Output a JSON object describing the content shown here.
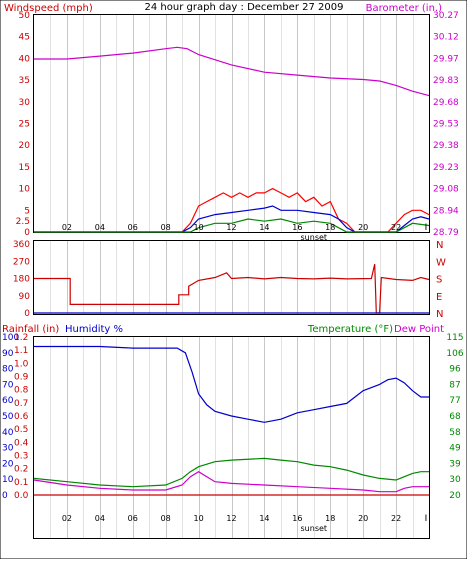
{
  "chart_data": [
    {
      "type": "line",
      "title": "24 hour graph day : December 27 2009",
      "left_axis": {
        "label": "Windspeed (mph)",
        "ticks": [
          0,
          2.5,
          5,
          10,
          15,
          20,
          25,
          30,
          35,
          40,
          45,
          50
        ],
        "tick_labels": [
          "0",
          "2.5",
          "5",
          "10",
          "15",
          "20",
          "25",
          "30",
          "35",
          "40",
          "45",
          "50"
        ],
        "ylim": [
          0,
          50
        ],
        "color": "#cc0000"
      },
      "right_axis": {
        "label": "Barometer (in.)",
        "tick_labels": [
          "28.79",
          "28.94",
          "29.08",
          "29.23",
          "29.38",
          "29.53",
          "29.68",
          "29.83",
          "29.97",
          "30.12",
          "30.27"
        ],
        "ylim": [
          28.79,
          30.27
        ],
        "color": "#cc00cc"
      },
      "x_tick_labels": [
        "02",
        "04",
        "06",
        "08",
        "10",
        "12",
        "14",
        "16",
        "18",
        "20",
        "22"
      ],
      "x_marker_label": "sunset",
      "x_end_marker": "I",
      "series": [
        {
          "role": "barometer",
          "color": "#cc00cc",
          "x": [
            0,
            2,
            4,
            6,
            8,
            8.7,
            9.3,
            10,
            12,
            14,
            16,
            18,
            20,
            21,
            22,
            23,
            24
          ],
          "y": [
            29.97,
            29.97,
            29.99,
            30.01,
            30.04,
            30.05,
            30.04,
            30.0,
            29.93,
            29.88,
            29.86,
            29.84,
            29.83,
            29.82,
            29.79,
            29.75,
            29.72
          ]
        },
        {
          "role": "wind gust",
          "color": "#ff0000",
          "x": [
            0,
            8.5,
            9,
            9.5,
            10,
            10.5,
            11,
            11.5,
            12,
            12.5,
            13,
            13.5,
            14,
            14.5,
            15,
            15.5,
            16,
            16.5,
            17,
            17.5,
            18,
            18.5,
            19,
            19.5,
            21.5,
            22,
            22.5,
            23,
            23.5,
            24
          ],
          "y": [
            0,
            0,
            0,
            2,
            6,
            7,
            8,
            9,
            8,
            9,
            8,
            9,
            9,
            10,
            9,
            8,
            9,
            7,
            8,
            6,
            7,
            3,
            2,
            0,
            0,
            2,
            4,
            5,
            5,
            4
          ]
        },
        {
          "role": "wind average",
          "color": "#0000cc",
          "x": [
            0,
            9,
            9.5,
            10,
            11,
            12,
            13,
            14,
            14.5,
            15,
            16,
            17,
            18,
            18.5,
            19,
            19.5,
            22,
            22.5,
            23,
            23.5,
            24
          ],
          "y": [
            0,
            0,
            1,
            3,
            4,
            4.5,
            5,
            5.5,
            6,
            5,
            5,
            4.5,
            4,
            3,
            1,
            0,
            0,
            1.5,
            3,
            3.5,
            3
          ]
        },
        {
          "role": "wind speed",
          "color": "#008800",
          "x": [
            0,
            9.5,
            10,
            11,
            12,
            13,
            14,
            15,
            16,
            17,
            18,
            18.5,
            19,
            22,
            22.5,
            23,
            24
          ],
          "y": [
            0,
            0,
            1,
            2,
            2,
            3,
            2.5,
            3,
            2,
            2.5,
            2,
            1,
            0,
            0,
            1,
            2,
            1.5
          ]
        }
      ]
    },
    {
      "type": "line",
      "y_tick_labels": [
        "0",
        "90",
        "180",
        "270",
        "360"
      ],
      "ylim": [
        0,
        360
      ],
      "right_labels": [
        "N",
        "W",
        "S",
        "E",
        "N"
      ],
      "series": [
        {
          "role": "wind direction",
          "color": "#cc0000",
          "x": [
            0,
            2.2,
            2.2,
            8.8,
            8.8,
            9.4,
            9.4,
            10,
            11,
            11.7,
            12,
            13,
            14,
            15,
            16,
            17,
            18,
            19,
            20.5,
            20.7,
            20.8,
            21.0,
            21.1,
            22,
            23,
            23.5,
            24
          ],
          "y": [
            180,
            180,
            45,
            45,
            95,
            95,
            140,
            170,
            185,
            210,
            180,
            185,
            178,
            185,
            180,
            178,
            182,
            178,
            180,
            255,
            0,
            0,
            185,
            175,
            170,
            185,
            175
          ]
        },
        {
          "role": "direction baseline",
          "color": "#0000cc",
          "x": [
            0,
            24
          ],
          "y": [
            0,
            0
          ]
        }
      ]
    },
    {
      "type": "line",
      "left_axis_1": {
        "label": "Rainfall (in)",
        "tick_labels": [
          "0.0",
          "0.1",
          "0.2",
          "0.3",
          "0.4",
          "0.5",
          "0.6",
          "0.7",
          "0.8",
          "0.9",
          "1.0",
          "1.1",
          "1.2"
        ],
        "color": "#cc0000"
      },
      "left_axis_2": {
        "label": "Humidity %",
        "tick_labels": [
          "0",
          "10",
          "20",
          "30",
          "40",
          "50",
          "60",
          "70",
          "80",
          "90",
          "100"
        ],
        "ylim": [
          0,
          100
        ],
        "color": "#0000cc"
      },
      "right_axis": {
        "label": "Temperature (°F)",
        "label2": "Dew Point",
        "tick_labels": [
          "20",
          "30",
          "39",
          "49",
          "58",
          "68",
          "77",
          "87",
          "96",
          "106",
          "115"
        ],
        "ylim": [
          20,
          115
        ],
        "color": "#008800",
        "color2": "#cc00cc"
      },
      "x_tick_labels": [
        "02",
        "04",
        "06",
        "08",
        "10",
        "12",
        "14",
        "16",
        "18",
        "20",
        "22"
      ],
      "x_marker_label": "sunset",
      "x_end_marker": "I",
      "series": [
        {
          "role": "humidity",
          "color": "#0000cc",
          "x": [
            0,
            4,
            6,
            8,
            8.7,
            9.2,
            9.6,
            10,
            10.5,
            11,
            12,
            13,
            14,
            15,
            16,
            17,
            18,
            19,
            20,
            21,
            21.5,
            22,
            22.5,
            23,
            23.5,
            24
          ],
          "y": [
            94,
            94,
            93,
            93,
            93,
            90,
            78,
            64,
            57,
            53,
            50,
            48,
            46,
            48,
            52,
            54,
            56,
            58,
            66,
            70,
            73,
            74,
            71,
            66,
            62,
            62
          ]
        },
        {
          "role": "temperature",
          "color": "#008800",
          "x": [
            0,
            2,
            4,
            6,
            8,
            9,
            9.5,
            10,
            11,
            12,
            14,
            15,
            16,
            17,
            18,
            19,
            20,
            21,
            22,
            22.5,
            23,
            23.5,
            24
          ],
          "y": [
            30,
            28,
            26,
            25,
            26,
            30,
            34,
            37,
            40,
            41,
            42,
            41,
            40,
            38,
            37,
            35,
            32,
            30,
            29,
            31,
            33,
            34,
            34
          ]
        },
        {
          "role": "dew point",
          "color": "#cc00cc",
          "x": [
            0,
            2,
            4,
            6,
            8,
            9,
            9.5,
            10,
            10.5,
            11,
            12,
            14,
            16,
            18,
            20,
            21,
            22,
            22.5,
            23,
            24
          ],
          "y": [
            29,
            26,
            24,
            23,
            23,
            26,
            31,
            34,
            31,
            28,
            27,
            26,
            25,
            24,
            23,
            22,
            22,
            24,
            25,
            25
          ]
        },
        {
          "role": "rainfall",
          "color": "#cc0000",
          "x": [
            0,
            24
          ],
          "y": [
            0,
            0
          ]
        }
      ]
    }
  ]
}
